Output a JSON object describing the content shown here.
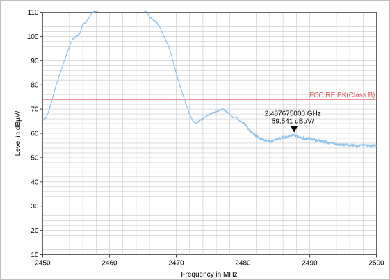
{
  "chart_data": {
    "type": "line",
    "title": "",
    "xlabel": "Frequency in MHz",
    "ylabel": "Level in dBµV/",
    "xlim": [
      2450,
      2500
    ],
    "ylim": [
      10,
      110
    ],
    "x_ticks": [
      "2450",
      "2460",
      "2470",
      "2480",
      "2490",
      "2500"
    ],
    "y_ticks": [
      "10",
      "20",
      "30",
      "40",
      "50",
      "60",
      "70",
      "80",
      "90",
      "100",
      "110"
    ],
    "grid": true,
    "colors": {
      "trace": "#8ec3ee",
      "limit": "#e05a5a",
      "grid": "#c8c8c8"
    },
    "limit_line": {
      "label": "FCC RE PK(Class B)",
      "value": 74
    },
    "marker": {
      "freq_label": "2.487675000 GHz",
      "level_label": "59.541 dBµV/",
      "x": 2487.675,
      "y": 59.541
    },
    "series": [
      {
        "values_x": [
          2450,
          2450.5,
          2451,
          2451.5,
          2452,
          2452.5,
          2453,
          2453.5,
          2454,
          2454.5,
          2455,
          2455.5,
          2456,
          2456.5,
          2457,
          2457.5,
          2458,
          2458.3,
          2465.2,
          2465.5,
          2466,
          2466.5,
          2467,
          2467.5,
          2468,
          2468.5,
          2469,
          2469.5,
          2470,
          2470.5,
          2471,
          2471.5,
          2472,
          2472.5,
          2473,
          2473.5,
          2474,
          2474.5,
          2475,
          2475.5,
          2476,
          2476.5,
          2477,
          2477.5,
          2478,
          2478.5,
          2479,
          2479.5,
          2480,
          2480.5,
          2481,
          2481.5,
          2482,
          2482.5,
          2483,
          2483.5,
          2484,
          2484.5,
          2485,
          2485.5,
          2486,
          2486.5,
          2487,
          2487.5,
          2488,
          2488.5,
          2489,
          2489.5,
          2490,
          2490.5,
          2491,
          2491.5,
          2492,
          2492.5,
          2493,
          2493.5,
          2494,
          2494.5,
          2495,
          2495.5,
          2496,
          2496.5,
          2497,
          2497.5,
          2498,
          2498.5,
          2499,
          2499.5,
          2500
        ],
        "values_y": [
          65.5,
          66.5,
          70,
          75,
          80,
          84,
          88,
          92,
          96,
          99,
          100,
          101,
          105,
          106,
          108,
          110,
          112,
          113,
          113,
          111,
          108,
          107,
          106,
          104,
          101,
          98,
          95,
          90,
          85,
          80,
          76,
          72,
          68,
          65,
          64,
          65.5,
          66,
          67,
          68,
          68.5,
          69,
          69.5,
          70,
          69,
          68,
          66.5,
          67,
          65,
          64.5,
          63,
          61,
          60,
          59,
          58,
          57.5,
          57,
          56.5,
          57,
          57.5,
          58,
          58.2,
          58.5,
          59,
          59.3,
          58.8,
          58.5,
          58,
          57.8,
          58,
          57.5,
          57,
          57.2,
          56.5,
          56.3,
          56,
          56.2,
          55.5,
          55.7,
          55.2,
          55.5,
          55,
          55.3,
          54.8,
          55.2,
          55,
          55.3,
          54.9,
          55.1,
          55
        ]
      }
    ]
  }
}
